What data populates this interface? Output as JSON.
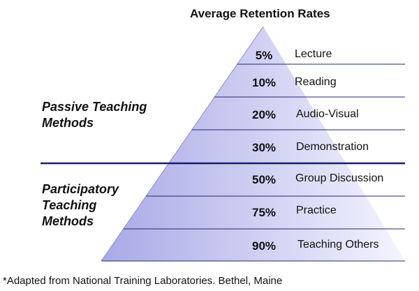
{
  "title": "Average Retention Rates",
  "groups": {
    "passive": "Passive Teaching\nMethods",
    "participatory": "Participatory\nTeaching\nMethods"
  },
  "rows": [
    {
      "percent": "5%",
      "method": "Lecture"
    },
    {
      "percent": "10%",
      "method": "Reading"
    },
    {
      "percent": "20%",
      "method": "Audio-Visual"
    },
    {
      "percent": "30%",
      "method": "Demonstration"
    },
    {
      "percent": "50%",
      "method": "Group Discussion"
    },
    {
      "percent": "75%",
      "method": "Practice"
    },
    {
      "percent": "90%",
      "method": "Teaching Others"
    }
  ],
  "footnote": "*Adapted from National Training Laboratories. Bethel, Maine",
  "colors": {
    "pyramid_light": "#f4f4ff",
    "pyramid_dark": "#a9a9e6",
    "rule": "#1f2a6e",
    "divider": "#13206a"
  }
}
